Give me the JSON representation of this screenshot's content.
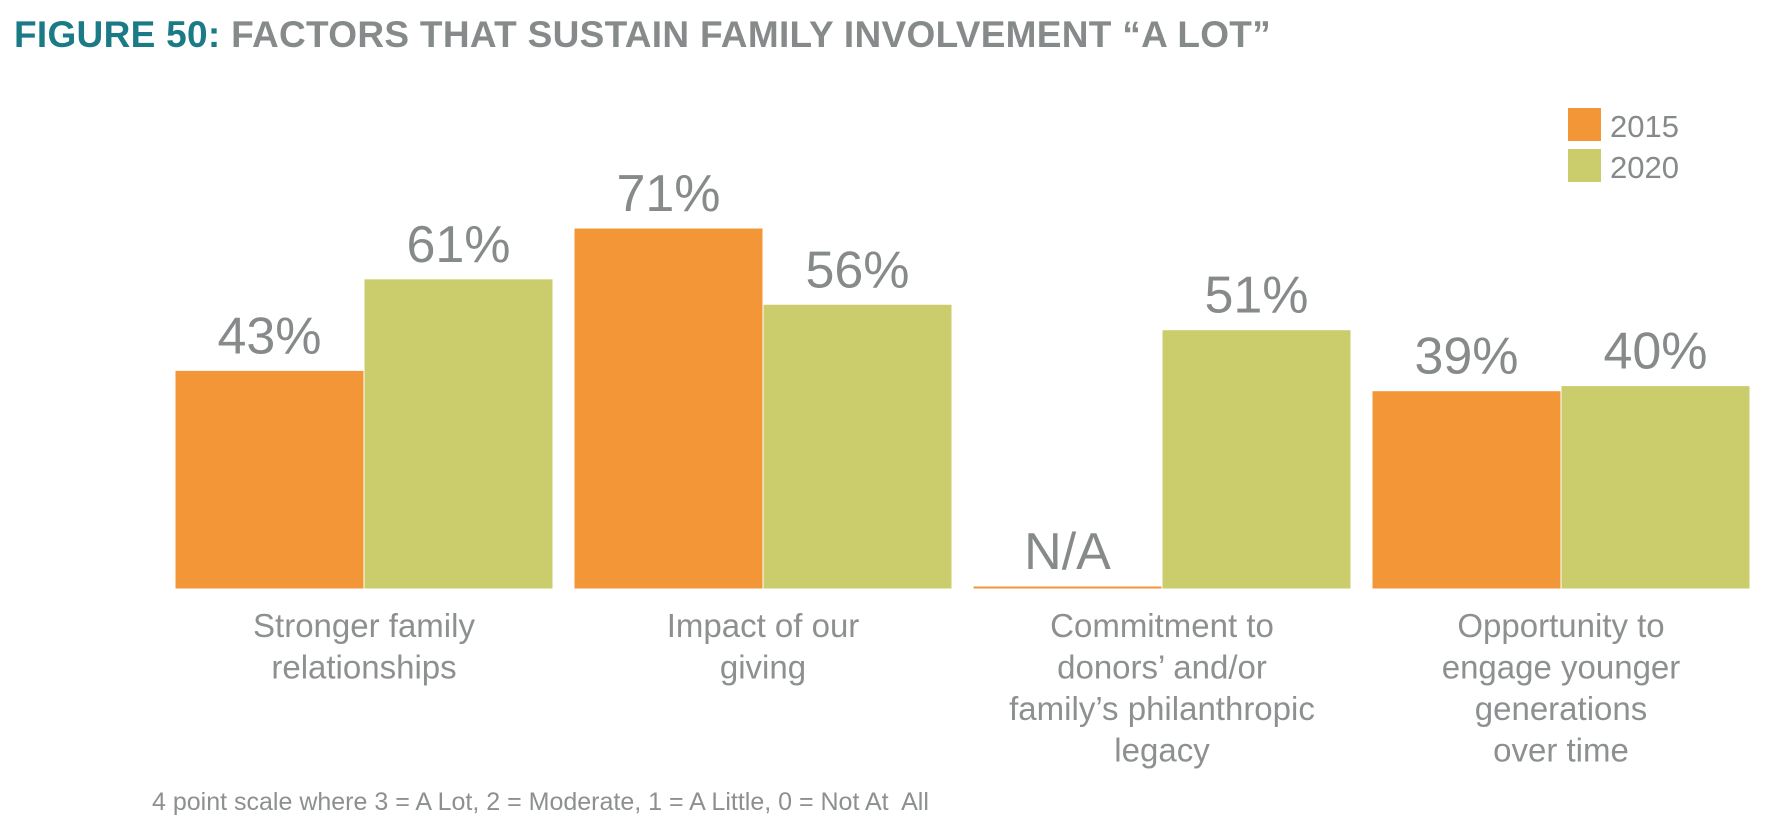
{
  "title": {
    "lead": "FIGURE 50:",
    "rest": "FACTORS THAT SUSTAIN FAMILY INVOLVEMENT “A LOT”"
  },
  "footnote": "4 point scale where 3 = A Lot, 2 = Moderate, 1 = A Little, 0 = Not At  All",
  "colors": {
    "2015": "#f39637",
    "2020": "#cbcc6b",
    "text": "#868a8a",
    "title_accent": "#1a7a86"
  },
  "chart_data": {
    "type": "bar",
    "categories": [
      [
        "Stronger family",
        "relationships"
      ],
      [
        "Impact of our",
        "giving"
      ],
      [
        "Commitment to",
        "donors’ and/or",
        "family’s philanthropic",
        "legacy"
      ],
      [
        "Opportunity to",
        "engage younger",
        "generations",
        "over time"
      ]
    ],
    "series": [
      {
        "name": "2015",
        "values": [
          43,
          71,
          null,
          39
        ],
        "labels": [
          "43%",
          "71%",
          "N/A",
          "39%"
        ]
      },
      {
        "name": "2020",
        "values": [
          61,
          56,
          51,
          40
        ],
        "labels": [
          "61%",
          "56%",
          "51%",
          "40%"
        ]
      }
    ],
    "unit": "%",
    "ylim": [
      0,
      71
    ],
    "grid": false,
    "legend": "top-right"
  }
}
